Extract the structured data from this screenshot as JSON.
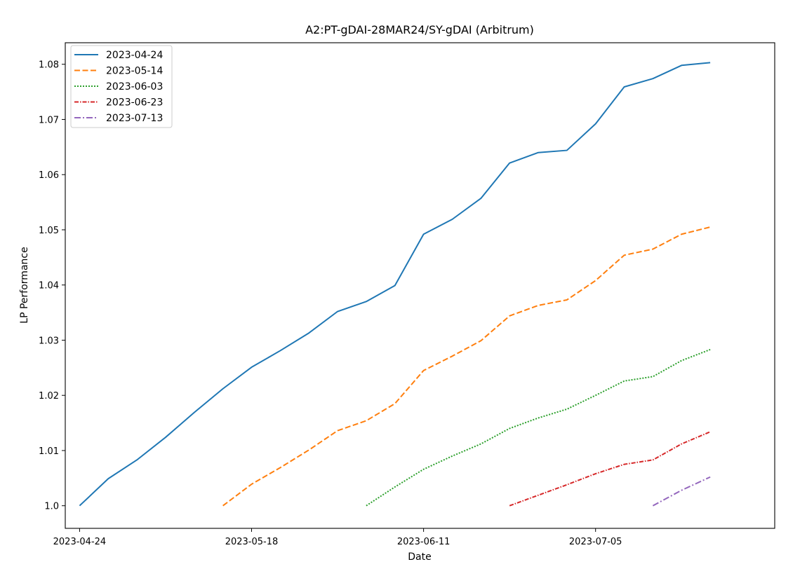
{
  "chart_data": {
    "type": "line",
    "title": "A2:PT-gDAI-28MAR24/SY-gDAI (Arbitrum)",
    "xlabel": "Date",
    "ylabel": "LP Performance",
    "x_axis": {
      "type": "date",
      "range": [
        "2023-04-22",
        "2023-07-30"
      ],
      "ticks": [
        "2023-04-24",
        "2023-05-18",
        "2023-06-11",
        "2023-07-05"
      ]
    },
    "y_axis": {
      "range": [
        0.9959,
        1.0839
      ],
      "ticks": [
        1.0,
        1.01,
        1.02,
        1.03,
        1.04,
        1.05,
        1.06,
        1.07,
        1.08
      ],
      "tick_labels": [
        "1.0",
        "1.01",
        "1.02",
        "1.03",
        "1.04",
        "1.05",
        "1.06",
        "1.07",
        "1.08"
      ]
    },
    "legend": {
      "placement": "top-left"
    },
    "grid": false,
    "series": [
      {
        "name": "2023-04-24",
        "color": "#1f77b4",
        "style": "solid",
        "x": [
          "2023-04-24",
          "2023-04-28",
          "2023-05-02",
          "2023-05-06",
          "2023-05-10",
          "2023-05-14",
          "2023-05-18",
          "2023-05-22",
          "2023-05-26",
          "2023-05-30",
          "2023-06-03",
          "2023-06-07",
          "2023-06-11",
          "2023-06-15",
          "2023-06-19",
          "2023-06-23",
          "2023-06-27",
          "2023-07-01",
          "2023-07-05",
          "2023-07-09",
          "2023-07-13",
          "2023-07-17",
          "2023-07-21"
        ],
        "y": [
          1.0,
          1.0049,
          1.0083,
          1.0124,
          1.0169,
          1.0212,
          1.0251,
          1.0281,
          1.0313,
          1.0352,
          1.037,
          1.0399,
          1.0492,
          1.0519,
          1.0557,
          1.0621,
          1.064,
          1.0644,
          1.0692,
          1.0759,
          1.0774,
          1.0798,
          1.0803
        ]
      },
      {
        "name": "2023-05-14",
        "color": "#ff7f0e",
        "style": "dashed",
        "x": [
          "2023-05-14",
          "2023-05-18",
          "2023-05-22",
          "2023-05-26",
          "2023-05-30",
          "2023-06-03",
          "2023-06-07",
          "2023-06-11",
          "2023-06-15",
          "2023-06-19",
          "2023-06-23",
          "2023-06-27",
          "2023-07-01",
          "2023-07-05",
          "2023-07-09",
          "2023-07-13",
          "2023-07-17",
          "2023-07-21"
        ],
        "y": [
          1.0,
          1.0039,
          1.0069,
          1.0101,
          1.0136,
          1.0154,
          1.0185,
          1.0245,
          1.0271,
          1.0299,
          1.0344,
          1.0363,
          1.0373,
          1.0408,
          1.0454,
          1.0465,
          1.0492,
          1.0505
        ]
      },
      {
        "name": "2023-06-03",
        "color": "#2ca02c",
        "style": "dotted",
        "x": [
          "2023-06-03",
          "2023-06-07",
          "2023-06-11",
          "2023-06-15",
          "2023-06-19",
          "2023-06-23",
          "2023-06-27",
          "2023-07-01",
          "2023-07-05",
          "2023-07-09",
          "2023-07-13",
          "2023-07-17",
          "2023-07-21"
        ],
        "y": [
          1.0,
          1.0034,
          1.0066,
          1.009,
          1.0112,
          1.014,
          1.0159,
          1.0175,
          1.02,
          1.0226,
          1.0234,
          1.0263,
          1.0283
        ]
      },
      {
        "name": "2023-06-23",
        "color": "#d62728",
        "style": "dashdot-dense",
        "x": [
          "2023-06-23",
          "2023-06-27",
          "2023-07-01",
          "2023-07-05",
          "2023-07-09",
          "2023-07-13",
          "2023-07-17",
          "2023-07-21"
        ],
        "y": [
          1.0,
          1.0019,
          1.0038,
          1.0058,
          1.0075,
          1.0083,
          1.0112,
          1.0134
        ]
      },
      {
        "name": "2023-07-13",
        "color": "#9467bd",
        "style": "dashdot",
        "x": [
          "2023-07-13",
          "2023-07-17",
          "2023-07-21"
        ],
        "y": [
          1.0,
          1.0028,
          1.0052
        ]
      }
    ]
  }
}
